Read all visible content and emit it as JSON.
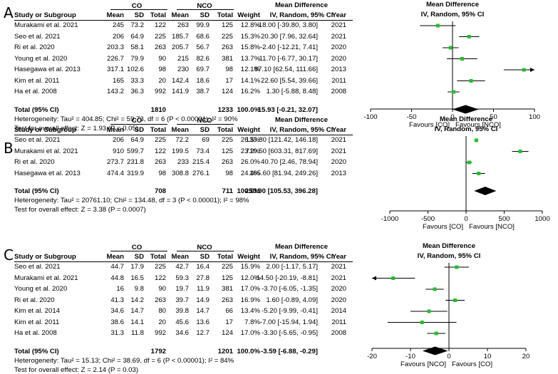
{
  "headers": {
    "study": "Study or Subgroup",
    "mean": "Mean",
    "sd": "SD",
    "total": "Total",
    "weight": "Weight",
    "md_title": "Mean Difference",
    "md_sub": "IV, Random, 95% CI",
    "year": "Year",
    "plot_title": "Mean Difference",
    "plot_sub": "IV, Random, 95% CI"
  },
  "panels": [
    {
      "label": "A",
      "group1": "CO",
      "group2": "NCO",
      "rows": [
        {
          "study": "Murakami et al. 2021",
          "m1": "245",
          "sd1": "73.2",
          "n1": "122",
          "m2": "263",
          "sd2": "99.9",
          "n2": "125",
          "weight": "12.8%",
          "ci": "-18.00 [-39.80, 3.80]",
          "year": "2021"
        },
        {
          "study": "Seo et al. 2021",
          "m1": "206",
          "sd1": "64.9",
          "n1": "225",
          "m2": "185.7",
          "sd2": "68.6",
          "n2": "225",
          "weight": "15.3%",
          "ci": "20.30 [7.96, 32.64]",
          "year": "2021"
        },
        {
          "study": "Ri et al. 2020",
          "m1": "203.3",
          "sd1": "58.1",
          "n1": "263",
          "m2": "205.7",
          "sd2": "56.7",
          "n2": "263",
          "weight": "15.8%",
          "ci": "-2.40 [-12.21, 7.41]",
          "year": "2020"
        },
        {
          "study": "Young et al. 2020",
          "m1": "226.7",
          "sd1": "79.9",
          "n1": "90",
          "m2": "215",
          "sd2": "82.6",
          "n2": "381",
          "weight": "13.7%",
          "ci": "11.70 [-6.77, 30.17]",
          "year": "2020"
        },
        {
          "study": "Hasegawa et al. 2013",
          "m1": "317.1",
          "sd1": "102.6",
          "n1": "98",
          "m2": "230",
          "sd2": "69.7",
          "n2": "98",
          "weight": "12.1%",
          "ci": "87.10 [62.54, 111.66]",
          "year": "2013"
        },
        {
          "study": "Kim et al. 2011",
          "m1": "165",
          "sd1": "33.3",
          "n1": "20",
          "m2": "142.4",
          "sd2": "18.6",
          "n2": "17",
          "weight": "14.1%",
          "ci": "22.60 [5.54, 39.66]",
          "year": "2011"
        },
        {
          "study": "Ha et al. 2008",
          "m1": "143.2",
          "sd1": "36.3",
          "n1": "992",
          "m2": "141.9",
          "sd2": "38.7",
          "n2": "124",
          "weight": "16.2%",
          "ci": "1.30 [-5.88, 8.48]",
          "year": "2008"
        }
      ],
      "total": {
        "label": "Total (95% CI)",
        "n1": "1810",
        "n2": "1233",
        "weight": "100.0%",
        "ci": "15.93 [-0.21, 32.07]"
      },
      "heterogeneity": "Heterogeneity: Tau² = 404.85; Chi² = 59.73, df = 6 (P < 0.00001); I² = 90%",
      "overall": "Test for overall effect: Z = 1.93 (P = 0.05)",
      "favours_left": "Favours [CO]",
      "favours_right": "Favours [NCO]"
    },
    {
      "label": "B",
      "group1": "CO",
      "group2": "NCO",
      "rows": [
        {
          "study": "Seo et al. 2021",
          "m1": "206",
          "sd1": "64.9",
          "n1": "225",
          "m2": "72.2",
          "sd2": "69",
          "n2": "225",
          "weight": "26.5%",
          "ci": "133.80 [121.42, 146.18]",
          "year": "2021"
        },
        {
          "study": "Murakami et al. 2021",
          "m1": "910",
          "sd1": "599.7",
          "n1": "122",
          "m2": "199.5",
          "sd2": "73.4",
          "n2": "125",
          "weight": "23.2%",
          "ci": "710.50 [603.31, 817.69]",
          "year": "2021"
        },
        {
          "study": "Ri et al. 2020",
          "m1": "273.7",
          "sd1": "231.8",
          "n1": "263",
          "m2": "233",
          "sd2": "215.4",
          "n2": "263",
          "weight": "26.0%",
          "ci": "40.70 [2.46, 78.94]",
          "year": "2020"
        },
        {
          "study": "Hasegawa et al. 2013",
          "m1": "474.4",
          "sd1": "319.9",
          "n1": "98",
          "m2": "308.8",
          "sd2": "276.1",
          "n2": "98",
          "weight": "24.4%",
          "ci": "165.60 [81.94, 249.26]",
          "year": "2013"
        }
      ],
      "total": {
        "label": "Total (95% CI)",
        "n1": "708",
        "n2": "711",
        "weight": "100.0%",
        "ci": "250.90 [105.53, 396.28]"
      },
      "heterogeneity": "Heterogeneity: Tau² = 20761.10; Chi² = 134.48, df = 3 (P < 0.00001); I² = 98%",
      "overall": "Test for overall effect: Z = 3.38 (P = 0.0007)",
      "favours_left": "Favours [CO]",
      "favours_right": "Favours [NCO]"
    },
    {
      "label": "C",
      "group1": "CO",
      "group2": "NCO",
      "rows": [
        {
          "study": "Seo et al. 2021",
          "m1": "44.7",
          "sd1": "17.9",
          "n1": "225",
          "m2": "42.7",
          "sd2": "16.4",
          "n2": "225",
          "weight": "15.9%",
          "ci": "2.00 [-1.17, 5.17]",
          "year": "2021"
        },
        {
          "study": "Murakami et al. 2021",
          "m1": "44.8",
          "sd1": "16.5",
          "n1": "122",
          "m2": "59.3",
          "sd2": "27.8",
          "n2": "125",
          "weight": "12.0%",
          "ci": "-14.50 [-20.19, -8.81]",
          "year": "2021"
        },
        {
          "study": "Young et al. 2020",
          "m1": "16",
          "sd1": "9.8",
          "n1": "90",
          "m2": "19.7",
          "sd2": "11.9",
          "n2": "381",
          "weight": "17.0%",
          "ci": "-3.70 [-6.05, -1.35]",
          "year": "2020"
        },
        {
          "study": "Ri et al. 2020",
          "m1": "41.3",
          "sd1": "14.2",
          "n1": "263",
          "m2": "39.7",
          "sd2": "14.9",
          "n2": "263",
          "weight": "16.9%",
          "ci": "1.60 [-0.89, 4.09]",
          "year": "2020"
        },
        {
          "study": "Kim et al. 2014",
          "m1": "34.6",
          "sd1": "14.7",
          "n1": "80",
          "m2": "39.8",
          "sd2": "14.7",
          "n2": "66",
          "weight": "13.4%",
          "ci": "-5.20 [-9.99, -0.41]",
          "year": "2014"
        },
        {
          "study": "Kim et al. 2011",
          "m1": "38.6",
          "sd1": "14.1",
          "n1": "20",
          "m2": "45.6",
          "sd2": "13.6",
          "n2": "17",
          "weight": "7.8%",
          "ci": "-7.00 [-15.94, 1.94]",
          "year": "2011"
        },
        {
          "study": "Ha et al. 2008",
          "m1": "31.3",
          "sd1": "11.8",
          "n1": "992",
          "m2": "34.6",
          "sd2": "12.7",
          "n2": "124",
          "weight": "17.0%",
          "ci": "-3.30 [-5.65, -0.95]",
          "year": "2008"
        }
      ],
      "total": {
        "label": "Total (95% CI)",
        "n1": "1792",
        "n2": "1201",
        "weight": "100.0%",
        "ci": "-3.59 [-6.88, -0.29]"
      },
      "heterogeneity": "Heterogeneity: Tau² = 15.13; Chi² = 38.69, df = 6 (P < 0.00001); I² = 84%",
      "overall": "Test for overall effect: Z = 2.14 (P = 0.03)",
      "favours_left": "Favours [NCO]",
      "favours_right": "Favours [CO]"
    }
  ],
  "chart_data": [
    {
      "type": "forest",
      "title": "Mean Difference",
      "subtitle": "IV, Random, 95% CI",
      "xlim": [
        -100,
        100
      ],
      "ticks": [
        -100,
        -50,
        0,
        50,
        100
      ],
      "points": [
        {
          "est": -18.0,
          "lo": -39.8,
          "hi": 3.8
        },
        {
          "est": 20.3,
          "lo": 7.96,
          "hi": 32.64
        },
        {
          "est": -2.4,
          "lo": -12.21,
          "hi": 7.41
        },
        {
          "est": 11.7,
          "lo": -6.77,
          "hi": 30.17
        },
        {
          "est": 87.1,
          "lo": 62.54,
          "hi": 111.66
        },
        {
          "est": 22.6,
          "lo": 5.54,
          "hi": 39.66
        },
        {
          "est": 1.3,
          "lo": -5.88,
          "hi": 8.48
        }
      ],
      "overall": {
        "est": 15.93,
        "lo": -0.21,
        "hi": 32.07
      },
      "marker_color": "#22c02a"
    },
    {
      "type": "forest",
      "title": "Mean Difference",
      "subtitle": "IV, Random, 95% CI",
      "xlim": [
        -1000,
        1000
      ],
      "ticks": [
        -1000,
        -500,
        0,
        500,
        1000
      ],
      "points": [
        {
          "est": 133.8,
          "lo": 121.42,
          "hi": 146.18
        },
        {
          "est": 710.5,
          "lo": 603.31,
          "hi": 817.69
        },
        {
          "est": 40.7,
          "lo": 2.46,
          "hi": 78.94
        },
        {
          "est": 165.6,
          "lo": 81.94,
          "hi": 249.26
        }
      ],
      "overall": {
        "est": 250.9,
        "lo": 105.53,
        "hi": 396.28
      },
      "marker_color": "#22c02a"
    },
    {
      "type": "forest",
      "title": "Mean Difference",
      "subtitle": "IV, Random, 95% CI",
      "xlim": [
        -20,
        20
      ],
      "ticks": [
        -20,
        -10,
        0,
        10,
        20
      ],
      "points": [
        {
          "est": 2.0,
          "lo": -1.17,
          "hi": 5.17
        },
        {
          "est": -14.5,
          "lo": -20.19,
          "hi": -8.81
        },
        {
          "est": -3.7,
          "lo": -6.05,
          "hi": -1.35
        },
        {
          "est": 1.6,
          "lo": -0.89,
          "hi": 4.09
        },
        {
          "est": -5.2,
          "lo": -9.99,
          "hi": -0.41
        },
        {
          "est": -7.0,
          "lo": -15.94,
          "hi": 1.94
        },
        {
          "est": -3.3,
          "lo": -5.65,
          "hi": -0.95
        }
      ],
      "overall": {
        "est": -3.59,
        "lo": -6.88,
        "hi": -0.29
      },
      "marker_color": "#22c02a"
    }
  ]
}
